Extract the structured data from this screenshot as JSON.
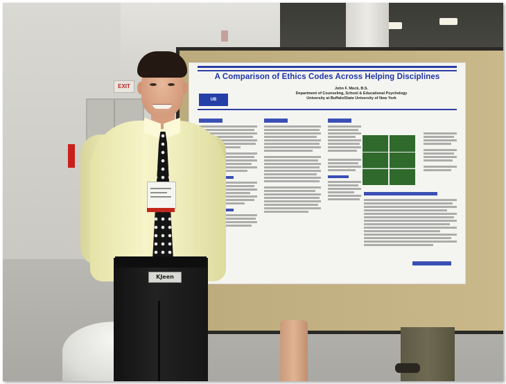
{
  "scene": {
    "description_tag": "photo",
    "exit_sign_text": "EXIT"
  },
  "poster": {
    "title": "A Comparison of Ethics Codes Across Helping Disciplines",
    "author": "John F. Mock, B.S.",
    "department": "Department of Counseling, School & Educational Psychology",
    "university": "University at Buffalo/State University of New York",
    "logo_text": "UB"
  },
  "person": {
    "belt_buckle_text": "KJeen"
  },
  "colors": {
    "poster_title": "#1f35a8",
    "board": "#c6b483",
    "shirt": "#f1efbf",
    "table_green": "#2f6a2c"
  }
}
